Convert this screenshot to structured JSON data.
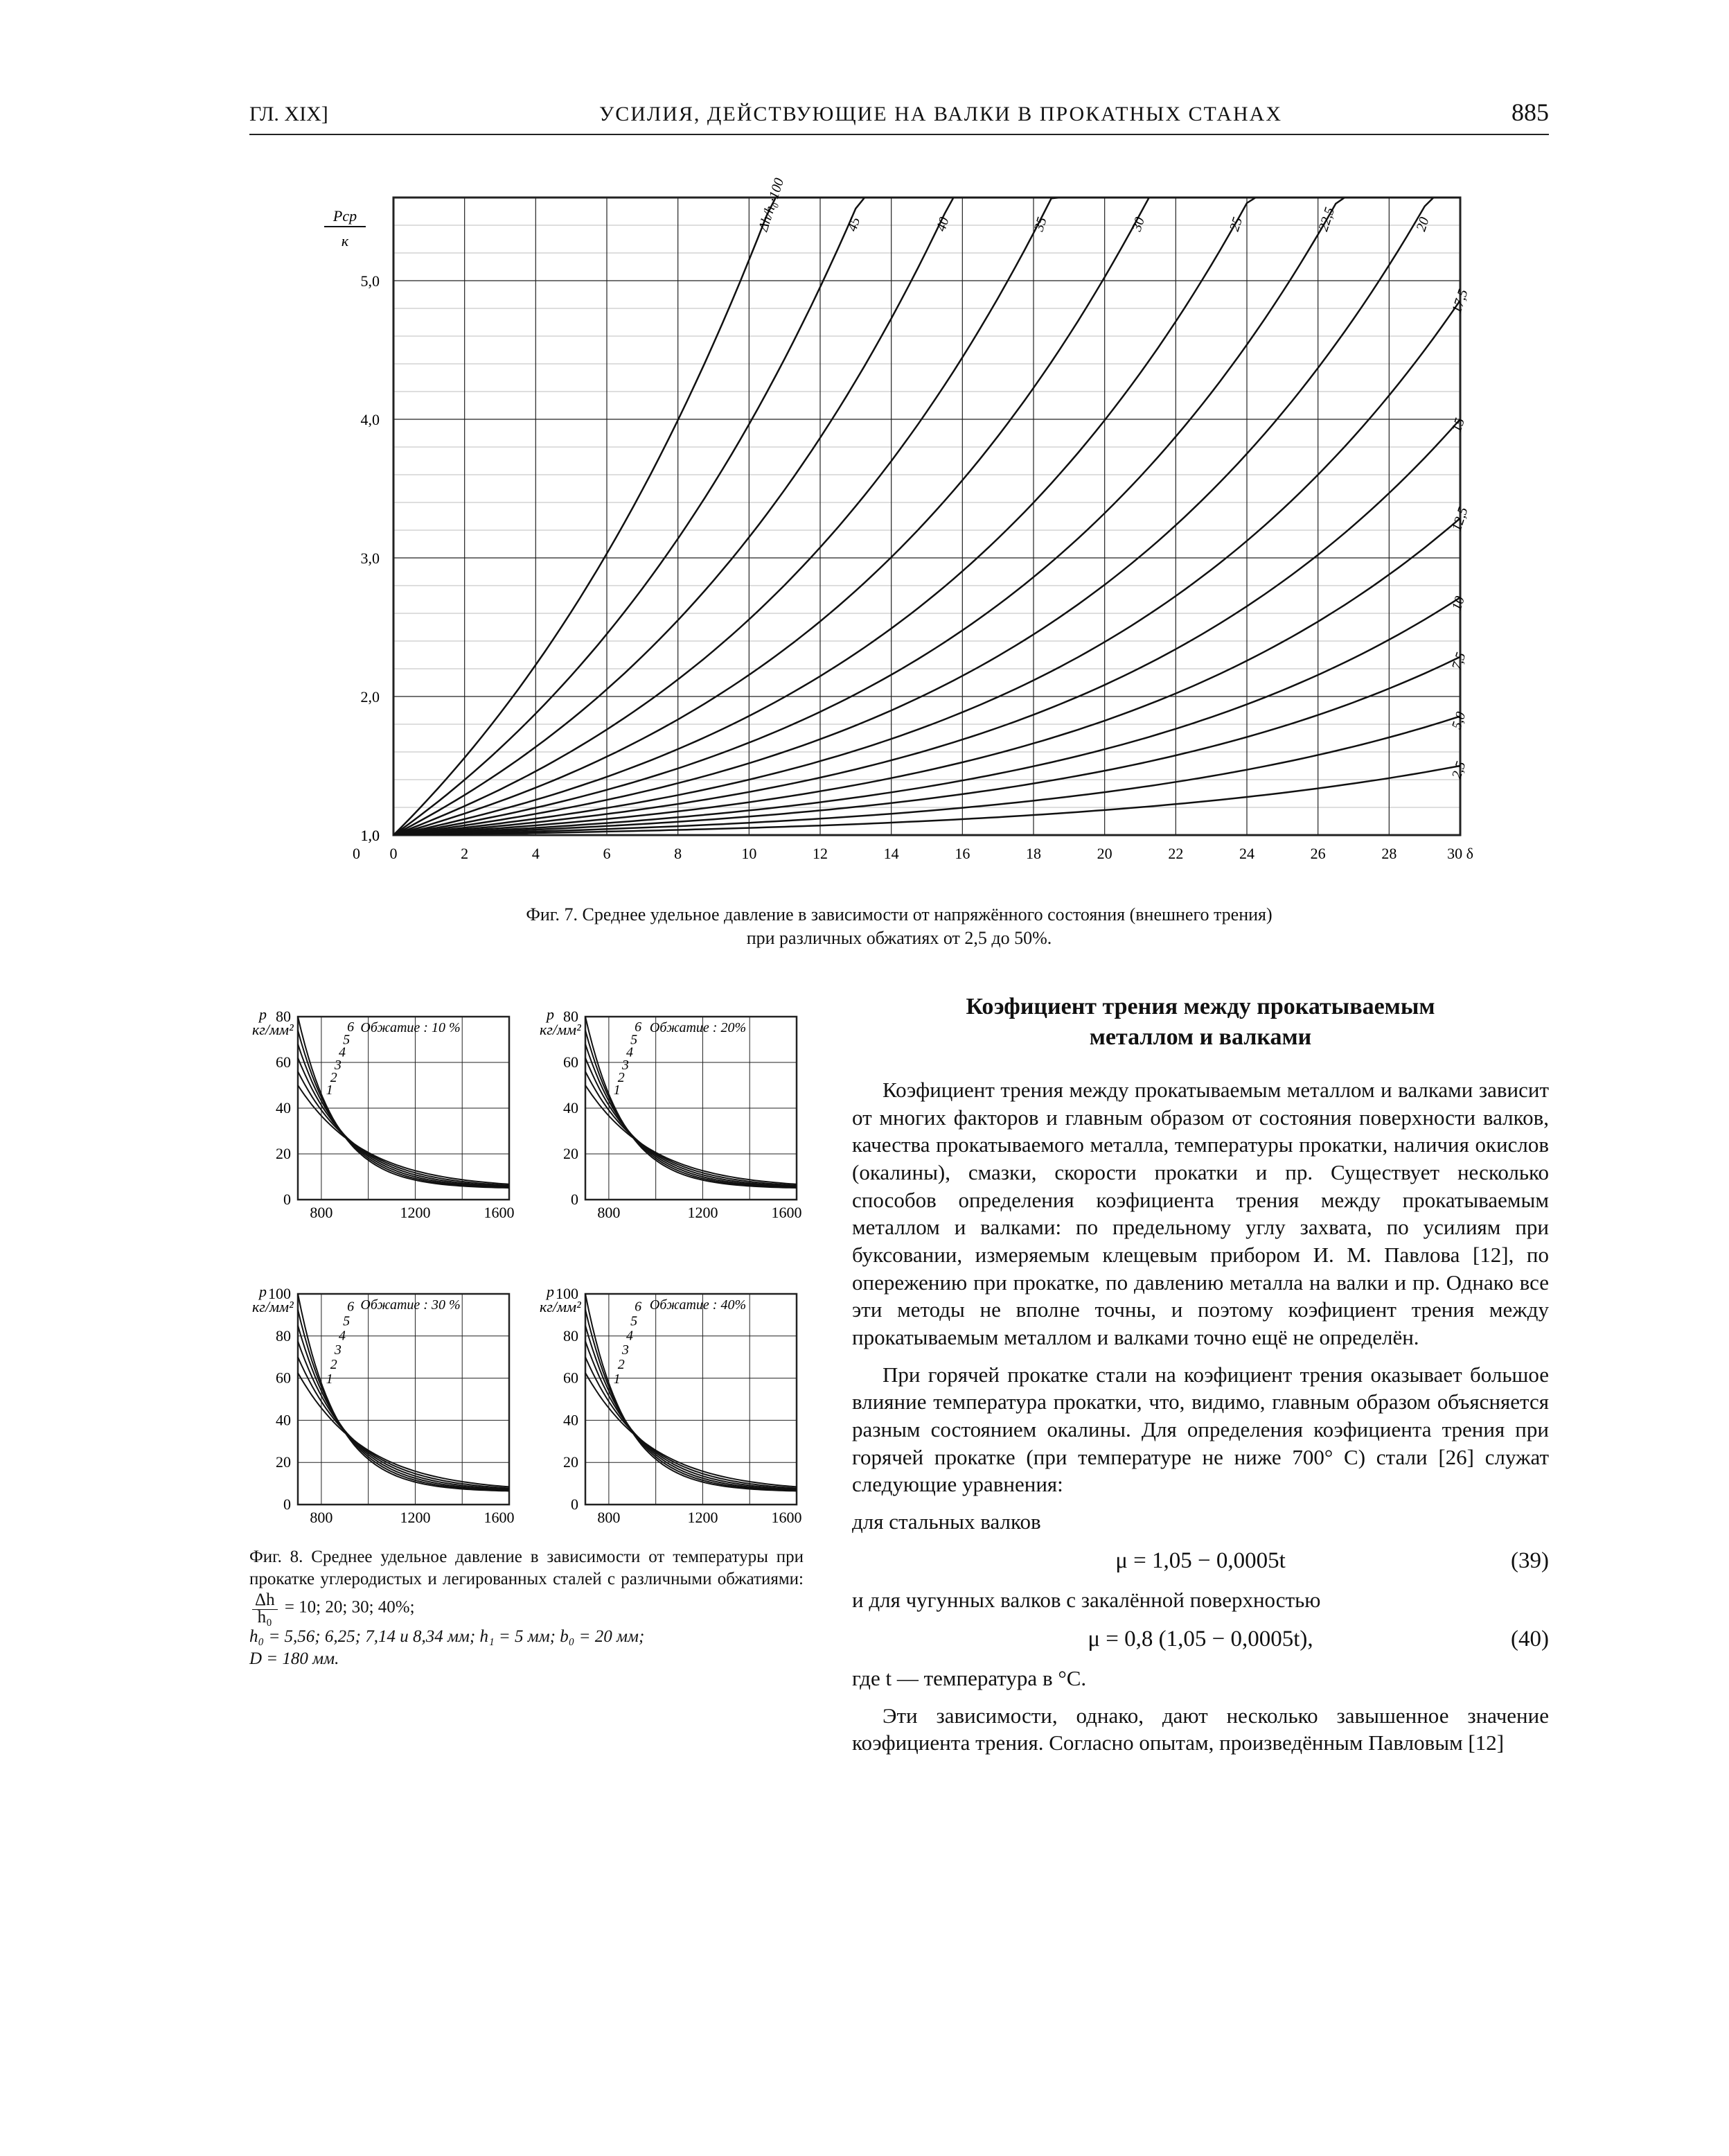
{
  "header": {
    "left": "ГЛ. XIX]",
    "center": "УСИЛИЯ, ДЕЙСТВУЮЩИЕ НА ВАЛКИ В ПРОКАТНЫХ СТАНАХ",
    "page_no": "885"
  },
  "fig7": {
    "type": "line-family",
    "caption_ln1": "Фиг. 7. Среднее удельное давление в зависимости от напряжённого состояния (внешнего трения)",
    "caption_ln2": "при различных обжатиях от 2,5 до 50%.",
    "x": {
      "label": "δ",
      "min": 0,
      "max": 30,
      "ticks": [
        0,
        2,
        4,
        6,
        8,
        10,
        12,
        14,
        16,
        18,
        20,
        22,
        24,
        26,
        28,
        30
      ],
      "last_tick": "30 δ"
    },
    "y": {
      "label": "Pср / к",
      "min": 1,
      "max": 5.6,
      "ticks": [
        1.0,
        2.0,
        3.0,
        4.0,
        5.0
      ]
    },
    "y_label_top": "Pср",
    "y_label_bot": "к",
    "grid_color": "#222",
    "bg": "#ffffff",
    "curve_color": "#111",
    "curve_width": 2.5,
    "curves": [
      {
        "pct": "2,5",
        "anchor_y": 1.2,
        "growth": 0.035
      },
      {
        "pct": "5,0",
        "anchor_y": 1.3,
        "growth": 0.06
      },
      {
        "pct": "7,5",
        "anchor_y": 1.45,
        "growth": 0.09
      },
      {
        "pct": "10",
        "anchor_y": 1.6,
        "growth": 0.12
      },
      {
        "pct": "12,5",
        "anchor_y": 1.8,
        "growth": 0.16
      },
      {
        "pct": "15",
        "anchor_y": 2.05,
        "growth": 0.21
      },
      {
        "pct": "17,5",
        "anchor_y": 2.35,
        "growth": 0.27
      },
      {
        "pct": "20",
        "anchor_y": 2.75,
        "growth": 0.35
      },
      {
        "pct": "22,5",
        "anchor_y": 3.25,
        "growth": 0.45
      },
      {
        "pct": "25",
        "anchor_y": 3.9,
        "growth": 0.58
      },
      {
        "pct": "30",
        "anchor_y": 5.6,
        "growth": 0.78
      },
      {
        "pct": "35",
        "anchor_y": 5.6,
        "growth": 1.05
      },
      {
        "pct": "40",
        "anchor_y": 5.6,
        "growth": 1.45
      },
      {
        "pct": "45",
        "anchor_y": 5.6,
        "growth": 2.0
      },
      {
        "pct": "50",
        "anchor_y": 5.6,
        "growth": 2.8
      }
    ],
    "curve_axis_label": "Δh/h₀·100 = 50%"
  },
  "fig8": {
    "type": "grid-of-line-charts",
    "panels": [
      {
        "title": "Обжатие : 10 %",
        "ymax": 80,
        "ytick": 20,
        "n_curves": 6
      },
      {
        "title": "Обжатие : 20%",
        "ymax": 80,
        "ytick": 20,
        "n_curves": 6
      },
      {
        "title": "Обжатие : 30 %",
        "ymax": 100,
        "ytick": 20,
        "n_curves": 6
      },
      {
        "title": "Обжатие : 40%",
        "ymax": 100,
        "ytick": 20,
        "n_curves": 6
      }
    ],
    "x": {
      "min": 700,
      "max": 1600,
      "ticks": [
        800,
        1200,
        1600
      ],
      "last_label": "1600 °C"
    },
    "y_label": "p кг/мм²",
    "curve_labels": [
      "1",
      "2",
      "3",
      "4",
      "5",
      "6"
    ],
    "grid_color": "#222",
    "curve_color": "#111",
    "curve_width": 2,
    "caption_1": "Фиг. 8. Среднее удельное давление в зависимости от температуры при прокатке углеродистых и легированных",
    "caption_2_before_frac": "сталей с различными обжатиями:",
    "frac_num": "Δh",
    "frac_den": "h₀",
    "caption_2_after_frac": " = 10; 20; 30; 40%;",
    "caption_3": "h₀ = 5,56; 6,25; 7,14 и 8,34 мм;  h₁ = 5 мм;  b₀ = 20 мм;",
    "caption_4": "D = 180 мм."
  },
  "text": {
    "section_title_1": "Коэфициент трения между прокатываемым",
    "section_title_2": "металлом и валками",
    "para1": "Коэфициент трения между прокатываемым металлом и валками зависит от многих факторов и главным образом от состояния поверхности валков, качества прокатываемого металла, температуры прокатки, наличия окислов (окалины), смазки, скорости прокатки и пр. Существует несколько способов определения коэфициента трения между прокатываемым металлом и валками: по предельному углу захвата, по усилиям при буксовании, измеряемым клещевым прибором И. М. Павлова [12], по опережению при прокатке, по давлению металла на валки и пр. Однако все эти методы не вполне точны, и поэтому коэфициент трения между прокатываемым металлом и валками точно ещё не определён.",
    "para2": "При горячей прокатке стали на коэфициент трения оказывает большое влияние температура прокатки, что, видимо, главным образом объясняется разным состоянием окалины. Для определения коэфициента трения при горячей прокатке (при температуре не ниже 700° C) стали [26] служат следующие уравнения:",
    "line_steelrolls": "для стальных валков",
    "eq39": "μ = 1,05 − 0,0005t",
    "eq39_no": "(39)",
    "line_castiron": "и для чугунных валков с закалённой поверхностью",
    "eq40": "μ = 0,8 (1,05 − 0,0005t),",
    "eq40_no": "(40)",
    "para3": "где t — температура в °C.",
    "para4": "Эти зависимости, однако, дают несколько завышенное значение коэфициента трения. Согласно опытам, произведённым Павловым [12]"
  },
  "colors": {
    "text": "#111111",
    "rule": "#222222",
    "bg": "#ffffff"
  }
}
